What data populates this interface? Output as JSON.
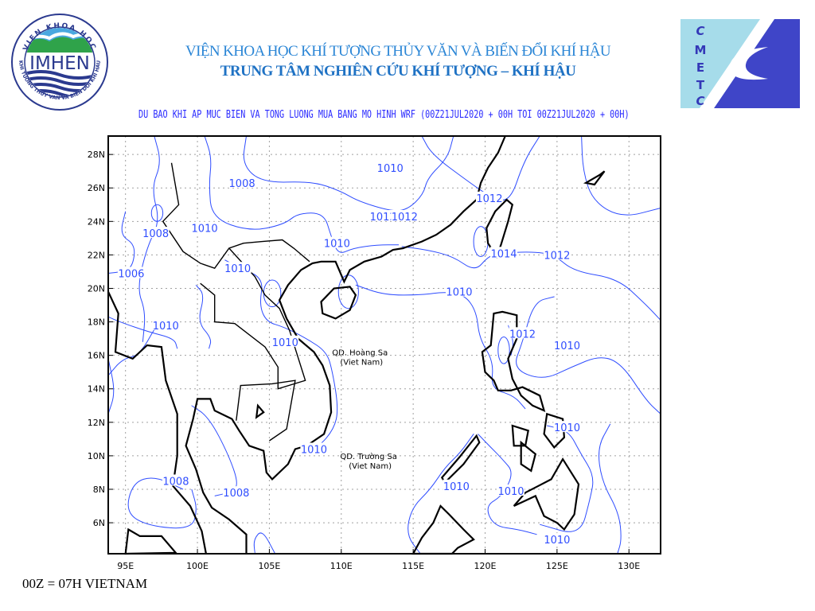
{
  "header": {
    "institute": "VIỆN KHOA HỌC KHÍ TƯỢNG THỦY VĂN VÀ BIẾN ĐỔI KHÍ HẬU",
    "center": "TRUNG TÂM NGHIÊN CỨU KHÍ TƯỢNG – KHÍ HẬU",
    "left_logo": {
      "text": "IMHEN",
      "ring_top": "VIEN KHOA HOC",
      "ring_bottom": "KHI TUONG THUY VAN VA BIEN DOI KHI HAU"
    },
    "right_logo": {
      "letters": [
        "C",
        "M",
        "E",
        "T",
        "C"
      ]
    }
  },
  "map": {
    "title": "DU BAO KHI AP MUC BIEN VA TONG LUONG MUA BANG MO HINH WRF (00Z21JUL2020 + 00H TOI 00Z21JUL2020 + 00H)",
    "lon_ticks": [
      "95E",
      "100E",
      "105E",
      "110E",
      "115E",
      "120E",
      "125E",
      "130E"
    ],
    "lat_ticks": [
      "6N",
      "8N",
      "10N",
      "12N",
      "14N",
      "16N",
      "18N",
      "20N",
      "22N",
      "24N",
      "26N",
      "28N"
    ],
    "extent": {
      "lon": [
        93.8,
        132.2
      ],
      "lat": [
        4.15,
        29.1
      ]
    },
    "grid": true,
    "colors": {
      "contour": "#2f4dff",
      "coast": "#000000",
      "grid": "#a0a0a0",
      "text": "#2a2aff"
    },
    "contour_labels": [
      {
        "text": "1010",
        "lon": 113.4,
        "lat": 27.2
      },
      {
        "text": "1008",
        "lon": 103.1,
        "lat": 26.3
      },
      {
        "text": "1012",
        "lon": 120.3,
        "lat": 25.4
      },
      {
        "text": "1012",
        "lon": 112.9,
        "lat": 24.3
      },
      {
        "text": "1012",
        "lon": 114.4,
        "lat": 24.3
      },
      {
        "text": "1008",
        "lon": 97.1,
        "lat": 23.3
      },
      {
        "text": "1010",
        "lon": 100.5,
        "lat": 23.6
      },
      {
        "text": "1010",
        "lon": 109.7,
        "lat": 22.7
      },
      {
        "text": "1014",
        "lon": 121.3,
        "lat": 22.1
      },
      {
        "text": "1012",
        "lon": 125.0,
        "lat": 22.0
      },
      {
        "text": "1006",
        "lon": 95.4,
        "lat": 20.9
      },
      {
        "text": "1010",
        "lon": 102.8,
        "lat": 21.2
      },
      {
        "text": "1010",
        "lon": 118.2,
        "lat": 19.8
      },
      {
        "text": "1010",
        "lon": 97.8,
        "lat": 17.8
      },
      {
        "text": "1012",
        "lon": 122.6,
        "lat": 17.3
      },
      {
        "text": "1010",
        "lon": 125.7,
        "lat": 16.6
      },
      {
        "text": "1010",
        "lon": 106.1,
        "lat": 16.8
      },
      {
        "text": "1010",
        "lon": 108.1,
        "lat": 10.4
      },
      {
        "text": "1010",
        "lon": 125.7,
        "lat": 11.7
      },
      {
        "text": "1008",
        "lon": 98.5,
        "lat": 8.5
      },
      {
        "text": "1008",
        "lon": 102.7,
        "lat": 7.8
      },
      {
        "text": "1010",
        "lon": 118.0,
        "lat": 8.2
      },
      {
        "text": "1010",
        "lon": 121.8,
        "lat": 7.9
      },
      {
        "text": "1010",
        "lon": 125.0,
        "lat": 5.0
      }
    ],
    "place_labels": [
      {
        "name": "QD. Hoàng Sa",
        "sub": "(Viet Nam)",
        "lon": 111.3,
        "lat": 16.0
      },
      {
        "name": "QD. Trường Sa",
        "sub": "(Viet Nam)",
        "lon": 111.9,
        "lat": 9.8
      }
    ]
  },
  "footer": {
    "note": "00Z = 07H VIETNAM"
  }
}
